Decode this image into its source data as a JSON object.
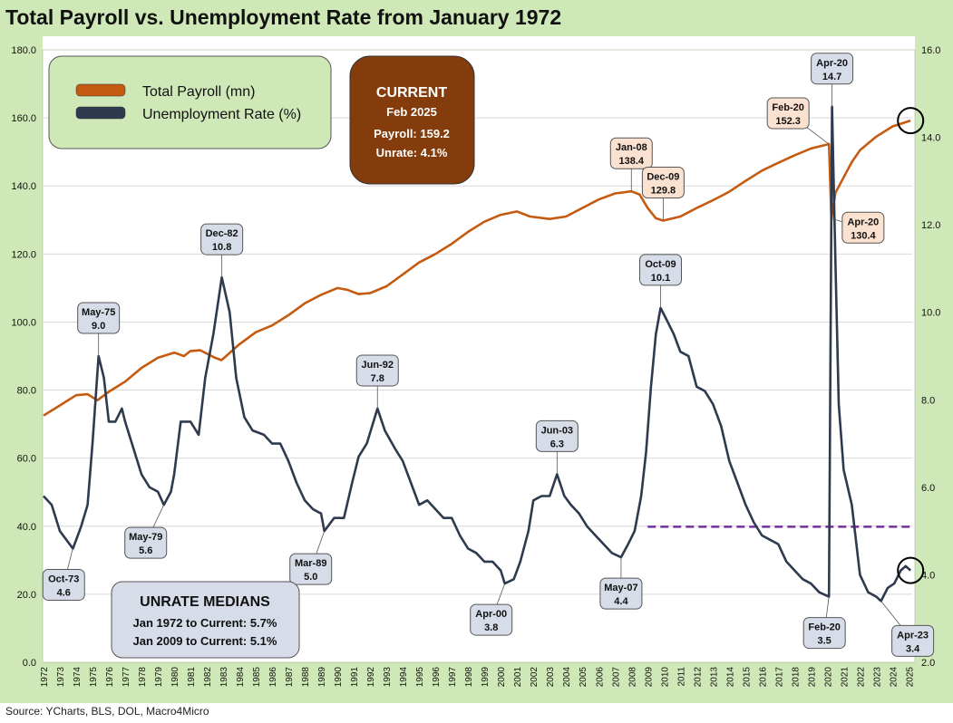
{
  "title": "Total Payroll vs. Unemployment Rate from January 1972",
  "source": "Source: YCharts, BLS, DOL, Macro4Micro",
  "legend": {
    "payroll": "Total Payroll (mn)",
    "unrate": "Unemployment Rate (%)"
  },
  "current_box": {
    "heading": "CURRENT",
    "date": "Feb 2025",
    "payroll": "Payroll: 159.2",
    "unrate": "Unrate: 4.1%"
  },
  "medians_box": {
    "heading": "UNRATE MEDIANS",
    "line1": "Jan 1972 to Current: 5.7%",
    "line2": "Jan 2009 to Current: 5.1%"
  },
  "colors": {
    "payroll": "#c55a11",
    "unrate": "#2e3a4e",
    "median_line": "#7030a0",
    "current_box": "#843c0c",
    "plot_bg": "#ffffff",
    "frame_bg": "#cfe8b8",
    "payroll_callout": "#fbe1d0",
    "unrate_callout": "#d6dce8"
  },
  "chart_data": {
    "type": "line",
    "x_ticks": [
      "1972",
      "1973",
      "1974",
      "1975",
      "1976",
      "1977",
      "1978",
      "1979",
      "1980",
      "1981",
      "1982",
      "1983",
      "1984",
      "1985",
      "1986",
      "1987",
      "1988",
      "1989",
      "1990",
      "1991",
      "1992",
      "1993",
      "1994",
      "1995",
      "1996",
      "1997",
      "1998",
      "1999",
      "2000",
      "2001",
      "2002",
      "2003",
      "2004",
      "2005",
      "2006",
      "2007",
      "2008",
      "2009",
      "2010",
      "2011",
      "2012",
      "2013",
      "2014",
      "2015",
      "2016",
      "2017",
      "2018",
      "2019",
      "2020",
      "2021",
      "2022",
      "2023",
      "2024",
      "2025"
    ],
    "y_left": {
      "min": 0,
      "max": 180,
      "ticks": [
        "0.0",
        "20.0",
        "40.0",
        "60.0",
        "80.0",
        "100.0",
        "120.0",
        "140.0",
        "160.0",
        "180.0"
      ]
    },
    "y_right": {
      "min": 2,
      "max": 16,
      "ticks": [
        "2.0",
        "4.0",
        "6.0",
        "8.0",
        "10.0",
        "12.0",
        "14.0",
        "16.0"
      ]
    },
    "series": [
      {
        "name": "Total Payroll (mn)",
        "axis": "left",
        "points": [
          [
            1972.0,
            72.5
          ],
          [
            1973.0,
            75.5
          ],
          [
            1974.0,
            78.5
          ],
          [
            1974.7,
            78.8
          ],
          [
            1975.3,
            77.0
          ],
          [
            1976.0,
            79.5
          ],
          [
            1977.0,
            82.5
          ],
          [
            1978.0,
            86.5
          ],
          [
            1979.0,
            89.5
          ],
          [
            1980.0,
            91.0
          ],
          [
            1980.6,
            90.0
          ],
          [
            1981.0,
            91.5
          ],
          [
            1981.6,
            91.7
          ],
          [
            1982.5,
            89.5
          ],
          [
            1982.9,
            88.8
          ],
          [
            1984.0,
            93.5
          ],
          [
            1985.0,
            97.0
          ],
          [
            1986.0,
            99.0
          ],
          [
            1987.0,
            102.0
          ],
          [
            1988.0,
            105.5
          ],
          [
            1989.0,
            108.0
          ],
          [
            1990.0,
            110.0
          ],
          [
            1990.6,
            109.5
          ],
          [
            1991.3,
            108.2
          ],
          [
            1992.0,
            108.5
          ],
          [
            1993.0,
            110.5
          ],
          [
            1994.0,
            114.0
          ],
          [
            1995.0,
            117.5
          ],
          [
            1996.0,
            120.0
          ],
          [
            1997.0,
            123.0
          ],
          [
            1998.0,
            126.5
          ],
          [
            1999.0,
            129.5
          ],
          [
            2000.0,
            131.5
          ],
          [
            2001.0,
            132.5
          ],
          [
            2001.8,
            131.0
          ],
          [
            2003.0,
            130.3
          ],
          [
            2004.0,
            131.0
          ],
          [
            2005.0,
            133.5
          ],
          [
            2006.0,
            136.0
          ],
          [
            2007.0,
            137.8
          ],
          [
            2008.0,
            138.4
          ],
          [
            2008.5,
            137.5
          ],
          [
            2009.0,
            133.5
          ],
          [
            2009.5,
            130.5
          ],
          [
            2009.95,
            129.8
          ],
          [
            2011.0,
            131.0
          ],
          [
            2012.0,
            133.5
          ],
          [
            2013.0,
            135.8
          ],
          [
            2014.0,
            138.3
          ],
          [
            2015.0,
            141.5
          ],
          [
            2016.0,
            144.5
          ],
          [
            2017.0,
            146.8
          ],
          [
            2018.0,
            149.0
          ],
          [
            2019.0,
            151.0
          ],
          [
            2020.1,
            152.3
          ],
          [
            2020.25,
            130.4
          ],
          [
            2020.5,
            138.0
          ],
          [
            2021.0,
            142.5
          ],
          [
            2021.5,
            147.0
          ],
          [
            2022.0,
            150.5
          ],
          [
            2023.0,
            154.5
          ],
          [
            2024.0,
            157.5
          ],
          [
            2025.1,
            159.2
          ]
        ]
      },
      {
        "name": "Unemployment Rate (%)",
        "axis": "right",
        "points": [
          [
            1972.0,
            5.8
          ],
          [
            1972.5,
            5.6
          ],
          [
            1973.0,
            5.0
          ],
          [
            1973.4,
            4.8
          ],
          [
            1973.8,
            4.6
          ],
          [
            1974.3,
            5.1
          ],
          [
            1974.7,
            5.6
          ],
          [
            1975.0,
            7.0
          ],
          [
            1975.37,
            9.0
          ],
          [
            1975.7,
            8.5
          ],
          [
            1976.0,
            7.5
          ],
          [
            1976.4,
            7.5
          ],
          [
            1976.8,
            7.8
          ],
          [
            1977.0,
            7.5
          ],
          [
            1977.5,
            6.9
          ],
          [
            1978.0,
            6.3
          ],
          [
            1978.5,
            6.0
          ],
          [
            1979.0,
            5.9
          ],
          [
            1979.37,
            5.6
          ],
          [
            1979.8,
            5.9
          ],
          [
            1980.0,
            6.3
          ],
          [
            1980.4,
            7.5
          ],
          [
            1980.7,
            7.5
          ],
          [
            1981.0,
            7.5
          ],
          [
            1981.5,
            7.2
          ],
          [
            1981.9,
            8.5
          ],
          [
            1982.4,
            9.5
          ],
          [
            1982.92,
            10.8
          ],
          [
            1983.4,
            10.0
          ],
          [
            1983.8,
            8.5
          ],
          [
            1984.3,
            7.6
          ],
          [
            1984.8,
            7.3
          ],
          [
            1985.5,
            7.2
          ],
          [
            1986.0,
            7.0
          ],
          [
            1986.5,
            7.0
          ],
          [
            1987.0,
            6.6
          ],
          [
            1987.5,
            6.1
          ],
          [
            1988.0,
            5.7
          ],
          [
            1988.5,
            5.5
          ],
          [
            1989.0,
            5.4
          ],
          [
            1989.2,
            5.0
          ],
          [
            1989.8,
            5.3
          ],
          [
            1990.4,
            5.3
          ],
          [
            1990.9,
            6.1
          ],
          [
            1991.3,
            6.7
          ],
          [
            1991.8,
            7.0
          ],
          [
            1992.45,
            7.8
          ],
          [
            1992.9,
            7.3
          ],
          [
            1993.5,
            6.9
          ],
          [
            1994.0,
            6.6
          ],
          [
            1994.5,
            6.1
          ],
          [
            1995.0,
            5.6
          ],
          [
            1995.5,
            5.7
          ],
          [
            1996.0,
            5.5
          ],
          [
            1996.5,
            5.3
          ],
          [
            1997.0,
            5.3
          ],
          [
            1997.5,
            4.9
          ],
          [
            1998.0,
            4.6
          ],
          [
            1998.5,
            4.5
          ],
          [
            1999.0,
            4.3
          ],
          [
            1999.5,
            4.3
          ],
          [
            2000.0,
            4.1
          ],
          [
            2000.25,
            3.8
          ],
          [
            2000.8,
            3.9
          ],
          [
            2001.2,
            4.3
          ],
          [
            2001.7,
            5.0
          ],
          [
            2002.0,
            5.7
          ],
          [
            2002.5,
            5.8
          ],
          [
            2003.0,
            5.8
          ],
          [
            2003.45,
            6.3
          ],
          [
            2003.9,
            5.8
          ],
          [
            2004.3,
            5.6
          ],
          [
            2004.8,
            5.4
          ],
          [
            2005.3,
            5.1
          ],
          [
            2005.8,
            4.9
          ],
          [
            2006.3,
            4.7
          ],
          [
            2006.8,
            4.5
          ],
          [
            2007.37,
            4.4
          ],
          [
            2007.8,
            4.7
          ],
          [
            2008.2,
            5.0
          ],
          [
            2008.6,
            5.8
          ],
          [
            2008.9,
            6.8
          ],
          [
            2009.2,
            8.3
          ],
          [
            2009.5,
            9.5
          ],
          [
            2009.79,
            10.1
          ],
          [
            2010.2,
            9.8
          ],
          [
            2010.6,
            9.5
          ],
          [
            2011.0,
            9.1
          ],
          [
            2011.5,
            9.0
          ],
          [
            2012.0,
            8.3
          ],
          [
            2012.5,
            8.2
          ],
          [
            2013.0,
            7.9
          ],
          [
            2013.5,
            7.4
          ],
          [
            2014.0,
            6.6
          ],
          [
            2014.5,
            6.1
          ],
          [
            2015.0,
            5.6
          ],
          [
            2015.5,
            5.2
          ],
          [
            2016.0,
            4.9
          ],
          [
            2016.5,
            4.8
          ],
          [
            2017.0,
            4.7
          ],
          [
            2017.5,
            4.3
          ],
          [
            2018.0,
            4.1
          ],
          [
            2018.5,
            3.9
          ],
          [
            2019.0,
            3.8
          ],
          [
            2019.5,
            3.6
          ],
          [
            2020.1,
            3.5
          ],
          [
            2020.29,
            14.7
          ],
          [
            2020.5,
            11.1
          ],
          [
            2020.7,
            7.9
          ],
          [
            2021.0,
            6.4
          ],
          [
            2021.5,
            5.6
          ],
          [
            2022.0,
            4.0
          ],
          [
            2022.5,
            3.6
          ],
          [
            2023.0,
            3.5
          ],
          [
            2023.29,
            3.4
          ],
          [
            2023.7,
            3.7
          ],
          [
            2024.1,
            3.8
          ],
          [
            2024.5,
            4.1
          ],
          [
            2024.8,
            4.2
          ],
          [
            2025.1,
            4.1
          ]
        ]
      }
    ],
    "reference_line": {
      "axis": "right",
      "value": 5.1,
      "from": 2009.0,
      "to": 2025.1
    },
    "annotations": [
      {
        "label": "May-75",
        "value": "9.0",
        "x": 1975.37,
        "y": 9.0,
        "axis": "right"
      },
      {
        "label": "Oct-73",
        "value": "4.6",
        "x": 1973.79,
        "y": 4.6,
        "axis": "right"
      },
      {
        "label": "May-79",
        "value": "5.6",
        "x": 1979.37,
        "y": 5.6,
        "axis": "right"
      },
      {
        "label": "Dec-82",
        "value": "10.8",
        "x": 1982.92,
        "y": 10.8,
        "axis": "right"
      },
      {
        "label": "Mar-89",
        "value": "5.0",
        "x": 1989.2,
        "y": 5.0,
        "axis": "right"
      },
      {
        "label": "Jun-92",
        "value": "7.8",
        "x": 1992.45,
        "y": 7.8,
        "axis": "right"
      },
      {
        "label": "Apr-00",
        "value": "3.8",
        "x": 2000.25,
        "y": 3.8,
        "axis": "right"
      },
      {
        "label": "Jun-03",
        "value": "6.3",
        "x": 2003.45,
        "y": 6.3,
        "axis": "right"
      },
      {
        "label": "May-07",
        "value": "4.4",
        "x": 2007.37,
        "y": 4.4,
        "axis": "right"
      },
      {
        "label": "Oct-09",
        "value": "10.1",
        "x": 2009.79,
        "y": 10.1,
        "axis": "right"
      },
      {
        "label": "Apr-20",
        "value": "14.7",
        "x": 2020.29,
        "y": 14.7,
        "axis": "right"
      },
      {
        "label": "Feb-20",
        "value": "3.5",
        "x": 2020.1,
        "y": 3.5,
        "axis": "right"
      },
      {
        "label": "Apr-23",
        "value": "3.4",
        "x": 2023.29,
        "y": 3.4,
        "axis": "right"
      },
      {
        "label": "Jan-08",
        "value": "138.4",
        "x": 2008.0,
        "y": 138.4,
        "axis": "left"
      },
      {
        "label": "Dec-09",
        "value": "129.8",
        "x": 2009.95,
        "y": 129.8,
        "axis": "left"
      },
      {
        "label": "Feb-20",
        "value": "152.3",
        "x": 2020.1,
        "y": 152.3,
        "axis": "left"
      },
      {
        "label": "Apr-20",
        "value": "130.4",
        "x": 2020.25,
        "y": 130.4,
        "axis": "left"
      }
    ],
    "highlights": [
      {
        "x": 2025.1,
        "y": 159.2,
        "axis": "left"
      },
      {
        "x": 2025.1,
        "y": 4.1,
        "axis": "right"
      }
    ]
  }
}
